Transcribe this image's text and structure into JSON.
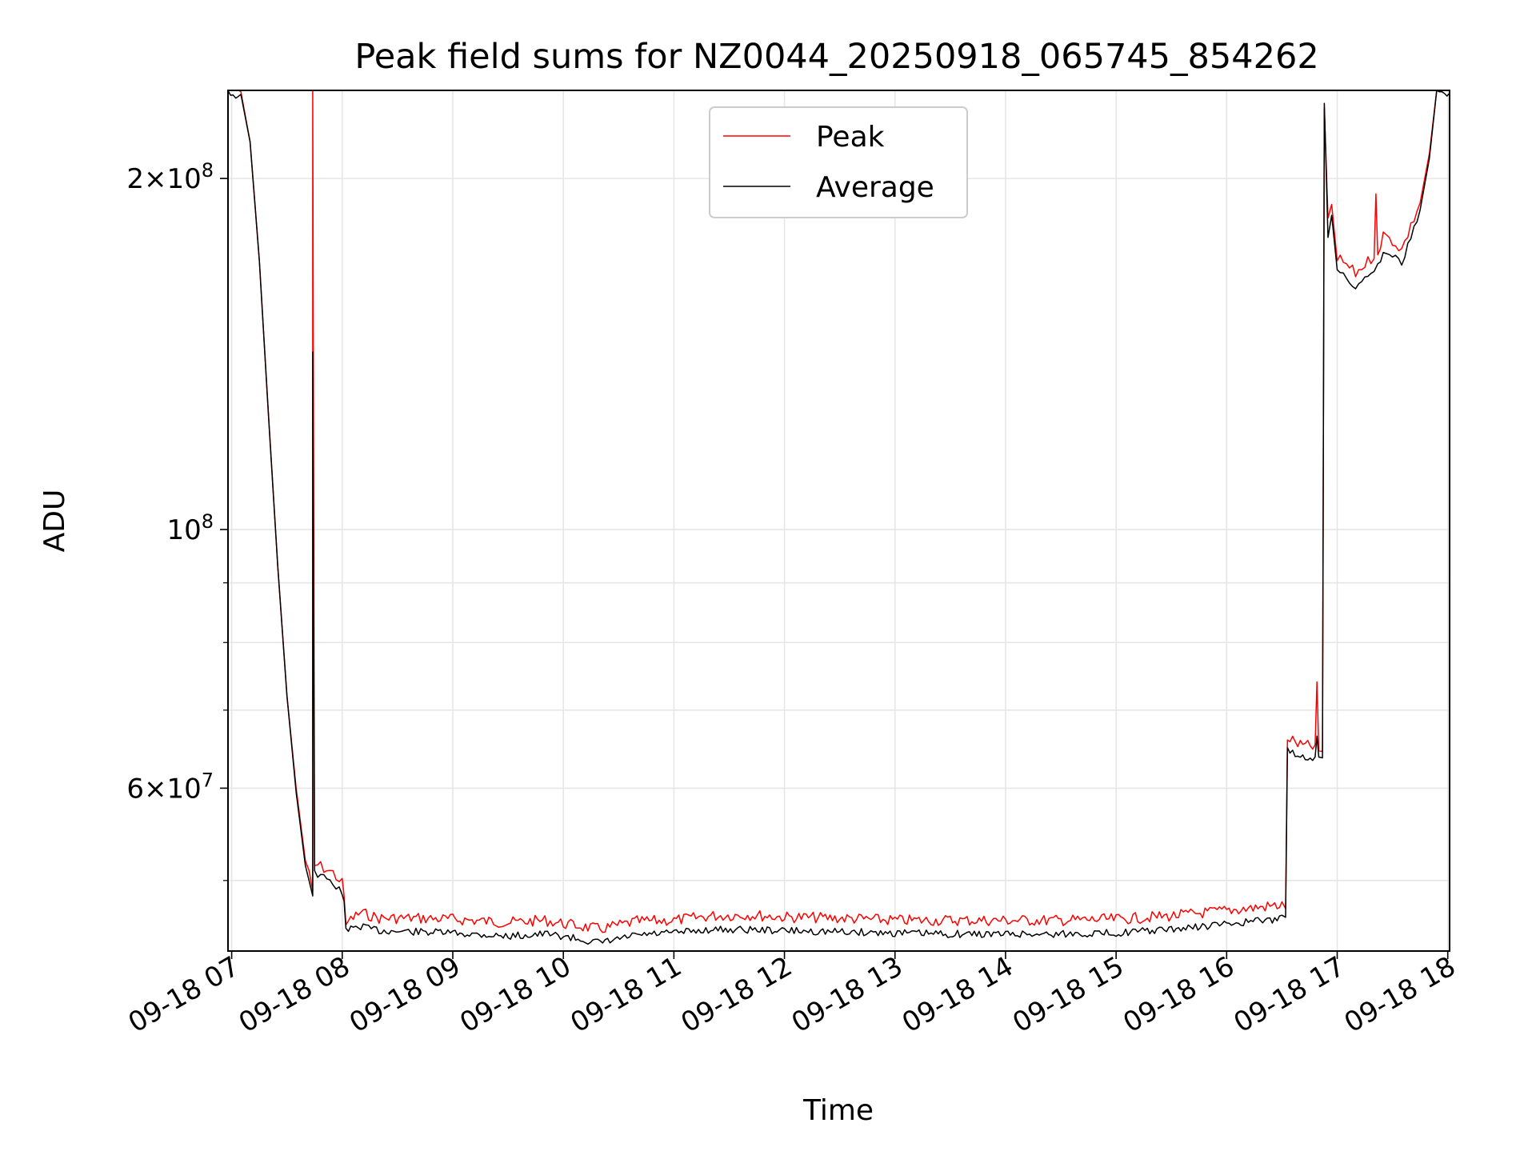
{
  "chart_data": {
    "type": "line",
    "title": "Peak field sums for NZ0044_20250918_065745_854262",
    "xlabel": "Time",
    "ylabel": "ADU",
    "yscale": "log",
    "ylim": [
      43500000,
      238000000
    ],
    "xlim": [
      "2025-09-18 06:58",
      "2025-09-18 18:01"
    ],
    "grid": true,
    "legend_position": "upper center",
    "x_ticks": [
      {
        "value": "2025-09-18 07:00",
        "label": "09-18 07"
      },
      {
        "value": "2025-09-18 08:00",
        "label": "09-18 08"
      },
      {
        "value": "2025-09-18 09:00",
        "label": "09-18 09"
      },
      {
        "value": "2025-09-18 10:00",
        "label": "09-18 10"
      },
      {
        "value": "2025-09-18 11:00",
        "label": "09-18 11"
      },
      {
        "value": "2025-09-18 12:00",
        "label": "09-18 12"
      },
      {
        "value": "2025-09-18 13:00",
        "label": "09-18 13"
      },
      {
        "value": "2025-09-18 14:00",
        "label": "09-18 14"
      },
      {
        "value": "2025-09-18 15:00",
        "label": "09-18 15"
      },
      {
        "value": "2025-09-18 16:00",
        "label": "09-18 16"
      },
      {
        "value": "2025-09-18 17:00",
        "label": "09-18 17"
      },
      {
        "value": "2025-09-18 18:00",
        "label": "09-18 18"
      }
    ],
    "y_major_ticks": [
      {
        "value": 60000000,
        "mantissa": "6",
        "exponent": "7"
      },
      {
        "value": 100000000,
        "mantissa": "",
        "exponent": "8"
      },
      {
        "value": 200000000,
        "mantissa": "2",
        "exponent": "8"
      }
    ],
    "y_minor_ticks": [
      50000000,
      70000000,
      80000000,
      90000000
    ],
    "series": [
      {
        "name": "Peak",
        "color": "#ff0000",
        "points": [
          [
            "2025-09-18 06:58",
            238000000
          ],
          [
            "2025-09-18 07:05",
            236000000
          ],
          [
            "2025-09-18 07:10",
            215000000
          ],
          [
            "2025-09-18 07:15",
            170000000
          ],
          [
            "2025-09-18 07:20",
            125000000
          ],
          [
            "2025-09-18 07:25",
            93000000
          ],
          [
            "2025-09-18 07:30",
            72000000
          ],
          [
            "2025-09-18 07:35",
            60000000
          ],
          [
            "2025-09-18 07:40",
            52000000
          ],
          [
            "2025-09-18 07:42",
            51000000
          ],
          [
            "2025-09-18 07:44",
            49000000
          ],
          [
            "2025-09-18 07:44",
            238000000
          ],
          [
            "2025-09-18 07:45",
            51500000
          ],
          [
            "2025-09-18 07:50",
            51000000
          ],
          [
            "2025-09-18 07:55",
            50500000
          ],
          [
            "2025-09-18 08:00",
            49500000
          ],
          [
            "2025-09-18 08:01",
            48500000
          ],
          [
            "2025-09-18 08:02",
            45800000
          ],
          [
            "2025-09-18 08:10",
            46700000
          ],
          [
            "2025-09-18 08:20",
            46200000
          ],
          [
            "2025-09-18 08:40",
            46200000
          ],
          [
            "2025-09-18 09:00",
            46100000
          ],
          [
            "2025-09-18 09:30",
            45800000
          ],
          [
            "2025-09-18 09:50",
            46000000
          ],
          [
            "2025-09-18 10:00",
            45700000
          ],
          [
            "2025-09-18 10:20",
            45200000
          ],
          [
            "2025-09-18 10:40",
            45900000
          ],
          [
            "2025-09-18 11:00",
            46000000
          ],
          [
            "2025-09-18 11:20",
            46400000
          ],
          [
            "2025-09-18 11:40",
            46500000
          ],
          [
            "2025-09-18 12:00",
            46300000
          ],
          [
            "2025-09-18 12:30",
            46200000
          ],
          [
            "2025-09-18 13:00",
            46000000
          ],
          [
            "2025-09-18 13:30",
            46000000
          ],
          [
            "2025-09-18 14:00",
            46000000
          ],
          [
            "2025-09-18 14:30",
            46000000
          ],
          [
            "2025-09-18 15:00",
            46100000
          ],
          [
            "2025-09-18 15:30",
            46400000
          ],
          [
            "2025-09-18 16:00",
            46900000
          ],
          [
            "2025-09-18 16:30",
            47400000
          ],
          [
            "2025-09-18 16:32",
            47300000
          ],
          [
            "2025-09-18 16:33",
            66000000
          ],
          [
            "2025-09-18 16:40",
            65000000
          ],
          [
            "2025-09-18 16:48",
            64800000
          ],
          [
            "2025-09-18 16:49",
            74000000
          ],
          [
            "2025-09-18 16:50",
            64600000
          ],
          [
            "2025-09-18 16:52",
            64500000
          ],
          [
            "2025-09-18 16:53",
            230000000
          ],
          [
            "2025-09-18 16:55",
            185000000
          ],
          [
            "2025-09-18 16:57",
            190000000
          ],
          [
            "2025-09-18 17:00",
            170000000
          ],
          [
            "2025-09-18 17:05",
            168000000
          ],
          [
            "2025-09-18 17:10",
            165000000
          ],
          [
            "2025-09-18 17:15",
            168000000
          ],
          [
            "2025-09-18 17:20",
            171000000
          ],
          [
            "2025-09-18 17:21",
            194000000
          ],
          [
            "2025-09-18 17:22",
            172000000
          ],
          [
            "2025-09-18 17:25",
            178000000
          ],
          [
            "2025-09-18 17:30",
            176000000
          ],
          [
            "2025-09-18 17:35",
            173000000
          ],
          [
            "2025-09-18 17:40",
            181000000
          ],
          [
            "2025-09-18 17:45",
            190000000
          ],
          [
            "2025-09-18 17:50",
            210000000
          ],
          [
            "2025-09-18 17:54",
            238000000
          ],
          [
            "2025-09-18 18:01",
            238000000
          ]
        ]
      },
      {
        "name": "Average",
        "color": "#000000",
        "points": [
          [
            "2025-09-18 06:58",
            238000000
          ],
          [
            "2025-09-18 07:05",
            236000000
          ],
          [
            "2025-09-18 07:10",
            215000000
          ],
          [
            "2025-09-18 07:15",
            170000000
          ],
          [
            "2025-09-18 07:20",
            125000000
          ],
          [
            "2025-09-18 07:25",
            93000000
          ],
          [
            "2025-09-18 07:30",
            72000000
          ],
          [
            "2025-09-18 07:35",
            59500000
          ],
          [
            "2025-09-18 07:40",
            51500000
          ],
          [
            "2025-09-18 07:42",
            50000000
          ],
          [
            "2025-09-18 07:44",
            48500000
          ],
          [
            "2025-09-18 07:44",
            142000000
          ],
          [
            "2025-09-18 07:45",
            51000000
          ],
          [
            "2025-09-18 07:50",
            50500000
          ],
          [
            "2025-09-18 07:55",
            50000000
          ],
          [
            "2025-09-18 08:00",
            49000000
          ],
          [
            "2025-09-18 08:01",
            48000000
          ],
          [
            "2025-09-18 08:02",
            45500000
          ],
          [
            "2025-09-18 08:10",
            45900000
          ],
          [
            "2025-09-18 08:20",
            45500000
          ],
          [
            "2025-09-18 08:40",
            45400000
          ],
          [
            "2025-09-18 09:00",
            45300000
          ],
          [
            "2025-09-18 09:30",
            45000000
          ],
          [
            "2025-09-18 09:50",
            45200000
          ],
          [
            "2025-09-18 10:00",
            45000000
          ],
          [
            "2025-09-18 10:20",
            44400000
          ],
          [
            "2025-09-18 10:40",
            45100000
          ],
          [
            "2025-09-18 11:00",
            45300000
          ],
          [
            "2025-09-18 11:20",
            45600000
          ],
          [
            "2025-09-18 11:40",
            45600000
          ],
          [
            "2025-09-18 12:00",
            45500000
          ],
          [
            "2025-09-18 12:30",
            45400000
          ],
          [
            "2025-09-18 13:00",
            45300000
          ],
          [
            "2025-09-18 13:30",
            45200000
          ],
          [
            "2025-09-18 14:00",
            45200000
          ],
          [
            "2025-09-18 14:30",
            45200000
          ],
          [
            "2025-09-18 15:00",
            45300000
          ],
          [
            "2025-09-18 15:30",
            45600000
          ],
          [
            "2025-09-18 16:00",
            46100000
          ],
          [
            "2025-09-18 16:30",
            46600000
          ],
          [
            "2025-09-18 16:32",
            46500000
          ],
          [
            "2025-09-18 16:33",
            65000000
          ],
          [
            "2025-09-18 16:40",
            64200000
          ],
          [
            "2025-09-18 16:48",
            64000000
          ],
          [
            "2025-09-18 16:49",
            66500000
          ],
          [
            "2025-09-18 16:50",
            63800000
          ],
          [
            "2025-09-18 16:52",
            63700000
          ],
          [
            "2025-09-18 16:53",
            232000000
          ],
          [
            "2025-09-18 16:55",
            178000000
          ],
          [
            "2025-09-18 16:57",
            186000000
          ],
          [
            "2025-09-18 17:00",
            167000000
          ],
          [
            "2025-09-18 17:05",
            165000000
          ],
          [
            "2025-09-18 17:10",
            162000000
          ],
          [
            "2025-09-18 17:15",
            165000000
          ],
          [
            "2025-09-18 17:20",
            168000000
          ],
          [
            "2025-09-18 17:22",
            169000000
          ],
          [
            "2025-09-18 17:25",
            174000000
          ],
          [
            "2025-09-18 17:30",
            173000000
          ],
          [
            "2025-09-18 17:35",
            170000000
          ],
          [
            "2025-09-18 17:40",
            179000000
          ],
          [
            "2025-09-18 17:45",
            188000000
          ],
          [
            "2025-09-18 17:50",
            208000000
          ],
          [
            "2025-09-18 17:54",
            238000000
          ],
          [
            "2025-09-18 18:01",
            238000000
          ]
        ]
      }
    ]
  }
}
